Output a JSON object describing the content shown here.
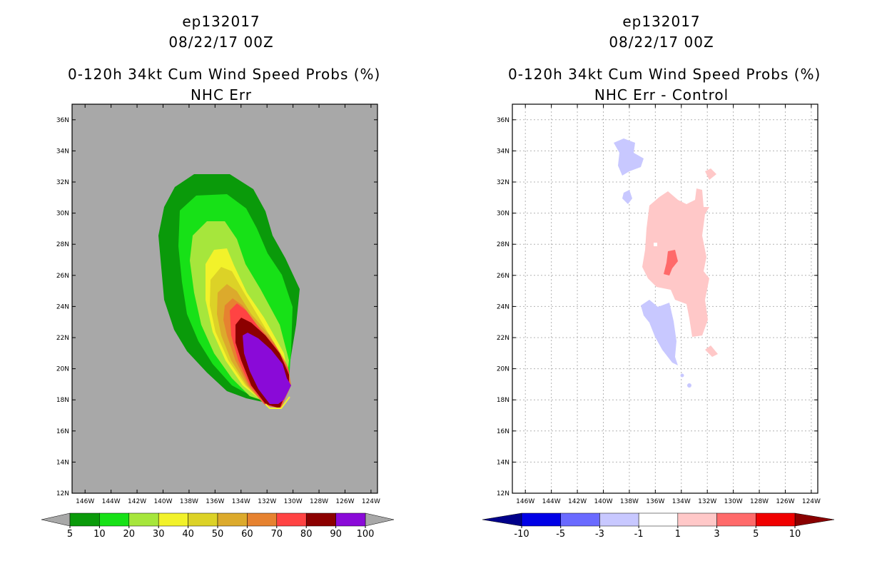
{
  "chart_data": [
    {
      "type": "contour-map",
      "title": [
        "ep132017",
        "08/22/17 00Z",
        "0-120h 34kt Cum Wind Speed Probs (%)",
        "NHC Err"
      ],
      "xlabels": [
        "146W",
        "144W",
        "142W",
        "140W",
        "138W",
        "136W",
        "134W",
        "132W",
        "130W",
        "128W",
        "126W",
        "124W"
      ],
      "ylabels": [
        "36N",
        "34N",
        "32N",
        "30N",
        "28N",
        "26N",
        "24N",
        "22N",
        "20N",
        "18N",
        "16N",
        "14N",
        "12N"
      ],
      "xlim": [
        -147,
        -123.5
      ],
      "ylim": [
        12,
        37
      ],
      "grid": false,
      "background_color": "#a8a8a8",
      "colorbar": {
        "labels": [
          "5",
          "10",
          "20",
          "30",
          "40",
          "50",
          "60",
          "70",
          "80",
          "90",
          "100"
        ],
        "colors": [
          "#0a9a0a",
          "#17e117",
          "#a6e63c",
          "#f2f22a",
          "#dcd227",
          "#dcaa2c",
          "#e68230",
          "#ff4343",
          "#8c0000",
          "#8a0ad8"
        ],
        "end_colors": [
          "#a8a8a8",
          "#a8a8a8"
        ]
      }
    },
    {
      "type": "contour-map",
      "title": [
        "ep132017",
        "08/22/17 00Z",
        "0-120h 34kt Cum Wind Speed Probs (%)",
        "NHC Err - Control"
      ],
      "xlabels": [
        "146W",
        "144W",
        "142W",
        "140W",
        "138W",
        "136W",
        "134W",
        "132W",
        "130W",
        "128W",
        "126W",
        "124W"
      ],
      "ylabels": [
        "36N",
        "34N",
        "32N",
        "30N",
        "28N",
        "26N",
        "24N",
        "22N",
        "20N",
        "18N",
        "16N",
        "14N",
        "12N"
      ],
      "xlim": [
        -147,
        -123.5
      ],
      "ylim": [
        12,
        37
      ],
      "grid": true,
      "background_color": "#ffffff",
      "colorbar": {
        "labels": [
          "-10",
          "-5",
          "-3",
          "-1",
          "1",
          "3",
          "5",
          "10"
        ],
        "colors": [
          "#0000e6",
          "#6a6aff",
          "#c8c8ff",
          "#ffffff",
          "#ffc8c8",
          "#ff6a6a",
          "#f00000"
        ],
        "end_colors": [
          "#00008a",
          "#8a0000"
        ]
      }
    }
  ]
}
